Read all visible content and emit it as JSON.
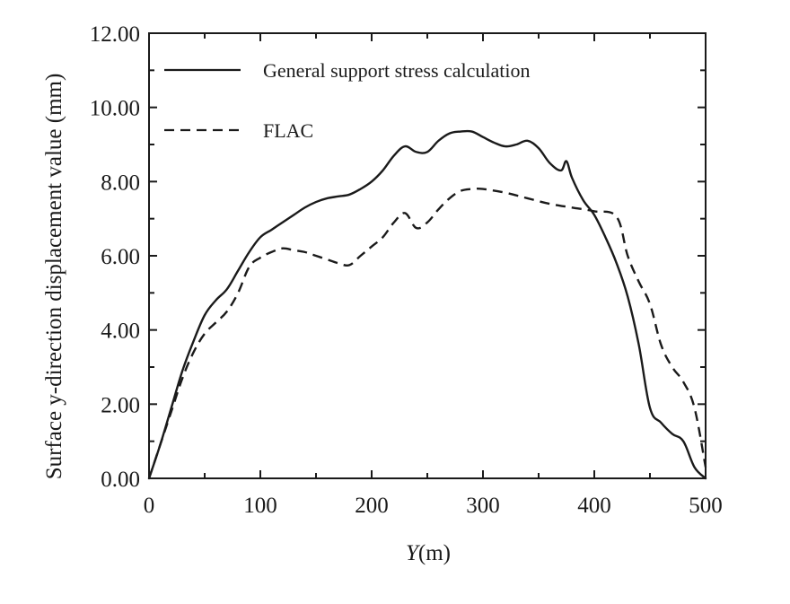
{
  "chart_data": {
    "type": "line",
    "title": "",
    "xlabel_italic": "Y",
    "xlabel_rest": "(m)",
    "ylabel": "Surface y-direction displacement value (mm)",
    "xlim": [
      0,
      500
    ],
    "ylim": [
      0,
      12
    ],
    "x_ticks": [
      0,
      100,
      200,
      300,
      400,
      500
    ],
    "x_tick_labels": [
      "0",
      "100",
      "200",
      "300",
      "400",
      "500"
    ],
    "y_ticks": [
      0,
      2,
      4,
      6,
      8,
      10,
      12
    ],
    "y_tick_labels": [
      "0.00",
      "2.00",
      "4.00",
      "6.00",
      "8.00",
      "10.00",
      "12.00"
    ],
    "grid": false,
    "legend_position": "top-left",
    "series": [
      {
        "name": "General support stress calculation",
        "style": "solid",
        "color": "#1a1a1a",
        "x": [
          0,
          10,
          20,
          30,
          40,
          50,
          60,
          70,
          80,
          90,
          100,
          110,
          120,
          130,
          140,
          150,
          160,
          170,
          180,
          190,
          200,
          210,
          220,
          230,
          240,
          250,
          260,
          270,
          280,
          290,
          300,
          310,
          320,
          330,
          340,
          350,
          360,
          370,
          375,
          380,
          390,
          400,
          410,
          420,
          430,
          440,
          450,
          460,
          470,
          480,
          490,
          500
        ],
        "y": [
          0,
          0.9,
          1.9,
          2.9,
          3.7,
          4.4,
          4.8,
          5.1,
          5.6,
          6.1,
          6.5,
          6.7,
          6.9,
          7.1,
          7.3,
          7.45,
          7.55,
          7.6,
          7.65,
          7.8,
          8.0,
          8.3,
          8.7,
          8.95,
          8.8,
          8.8,
          9.1,
          9.3,
          9.35,
          9.35,
          9.2,
          9.05,
          8.95,
          9.0,
          9.1,
          8.9,
          8.5,
          8.3,
          8.55,
          8.1,
          7.5,
          7.1,
          6.5,
          5.8,
          4.9,
          3.6,
          1.9,
          1.5,
          1.2,
          1.0,
          0.3,
          0
        ]
      },
      {
        "name": "FLAC",
        "style": "dashed",
        "color": "#1a1a1a",
        "x": [
          0,
          10,
          20,
          30,
          40,
          50,
          60,
          70,
          80,
          90,
          100,
          110,
          120,
          130,
          140,
          150,
          160,
          170,
          180,
          190,
          200,
          210,
          220,
          230,
          240,
          250,
          260,
          270,
          280,
          290,
          300,
          320,
          340,
          360,
          380,
          400,
          420,
          430,
          440,
          450,
          460,
          470,
          480,
          490,
          500
        ],
        "y": [
          0,
          0.9,
          1.8,
          2.7,
          3.4,
          3.9,
          4.2,
          4.5,
          5.0,
          5.7,
          5.95,
          6.1,
          6.2,
          6.15,
          6.1,
          6.0,
          5.9,
          5.8,
          5.75,
          6.0,
          6.25,
          6.5,
          6.9,
          7.15,
          6.75,
          6.9,
          7.25,
          7.55,
          7.75,
          7.8,
          7.8,
          7.7,
          7.55,
          7.4,
          7.3,
          7.2,
          7.05,
          6.0,
          5.3,
          4.7,
          3.6,
          3.0,
          2.6,
          1.9,
          0.3
        ]
      }
    ]
  }
}
